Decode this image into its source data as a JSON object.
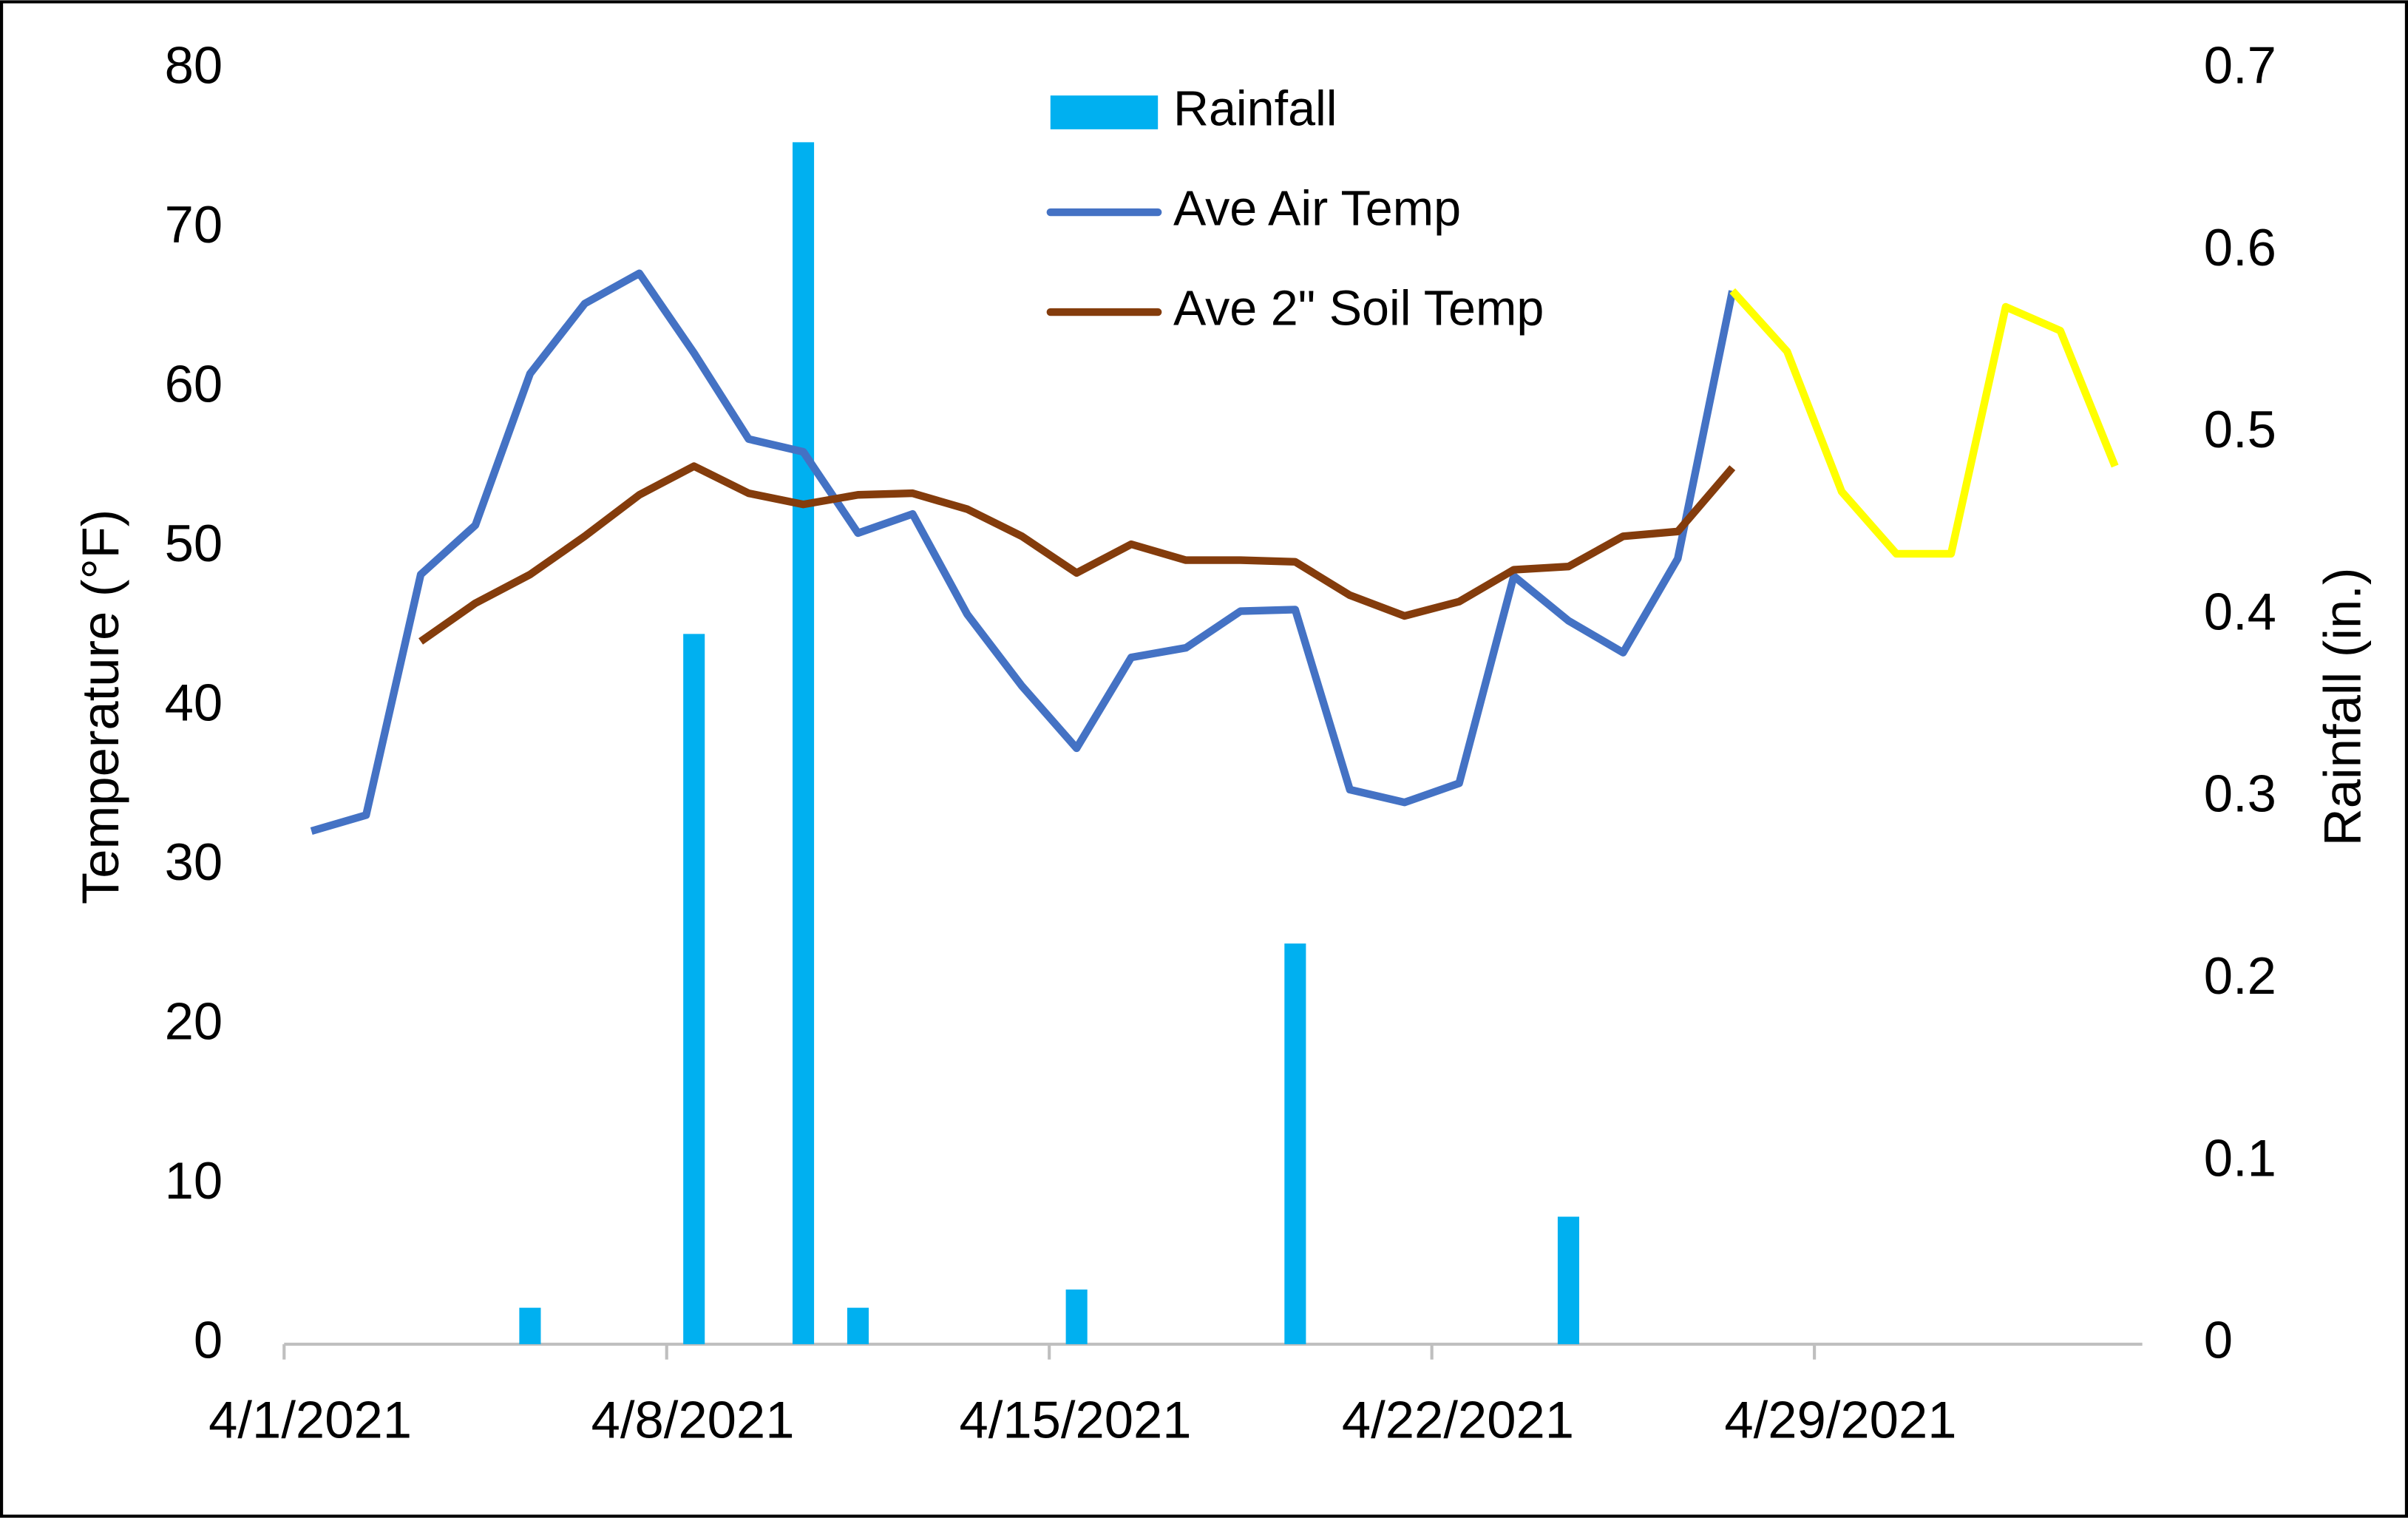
{
  "chart_data": {
    "type": "combo",
    "x": [
      "4/1/2021",
      "4/2/2021",
      "4/3/2021",
      "4/4/2021",
      "4/5/2021",
      "4/6/2021",
      "4/7/2021",
      "4/8/2021",
      "4/9/2021",
      "4/10/2021",
      "4/11/2021",
      "4/12/2021",
      "4/13/2021",
      "4/14/2021",
      "4/15/2021",
      "4/16/2021",
      "4/17/2021",
      "4/18/2021",
      "4/19/2021",
      "4/20/2021",
      "4/21/2021",
      "4/22/2021",
      "4/23/2021",
      "4/24/2021",
      "4/25/2021",
      "4/26/2021",
      "4/27/2021",
      "4/28/2021",
      "4/29/2021",
      "4/30/2021",
      "5/1/2021",
      "5/2/2021",
      "5/3/2021",
      "5/4/2021"
    ],
    "xlim": [
      "4/1/2021",
      "5/5/2021"
    ],
    "xticks": [
      "4/1/2021",
      "4/8/2021",
      "4/15/2021",
      "4/22/2021",
      "4/29/2021"
    ],
    "ylabel": "Temperature (°F)",
    "ylim": [
      0,
      80
    ],
    "yticks": [
      0,
      10,
      20,
      30,
      40,
      50,
      60,
      70,
      80
    ],
    "y2label": "Rainfall (in.)",
    "y2lim": [
      0,
      0.7
    ],
    "y2ticks": [
      0,
      0.1,
      0.2,
      0.3,
      0.4,
      0.5,
      0.6,
      0.7
    ],
    "grid": false,
    "legend": "top",
    "series": [
      {
        "name": "Rainfall",
        "type": "bar",
        "axis": "y2",
        "color": "#00B0F0",
        "values": [
          0,
          0,
          0,
          0,
          0.02,
          0,
          0,
          0.39,
          0,
          0.66,
          0.02,
          0,
          0,
          0,
          0.03,
          0,
          0,
          0,
          0.22,
          0,
          0,
          0,
          0,
          0.07,
          0,
          0,
          0,
          null,
          null,
          null,
          null,
          null,
          null,
          null
        ]
      },
      {
        "name": "Ave Air Temp",
        "type": "line",
        "color": "#4472C4",
        "values": [
          32.2,
          33.2,
          48.3,
          51.4,
          60.9,
          65.3,
          67.2,
          62.2,
          56.8,
          56.0,
          50.9,
          52.1,
          45.8,
          41.3,
          37.4,
          43.1,
          43.7,
          46.0,
          46.1,
          34.8,
          34.0,
          35.2,
          48.2,
          45.4,
          43.4,
          49.3,
          66.1,
          null,
          null,
          null,
          null,
          null,
          null,
          null
        ]
      },
      {
        "name": "Ave 2\" Soil Temp",
        "type": "line",
        "color": "#843C0C",
        "values": [
          null,
          null,
          44.1,
          46.5,
          48.3,
          50.7,
          53.3,
          55.1,
          53.4,
          52.7,
          53.3,
          53.4,
          52.4,
          50.7,
          48.4,
          50.2,
          49.2,
          49.2,
          49.1,
          47.0,
          45.7,
          46.6,
          48.6,
          48.8,
          50.7,
          51.0,
          55.0,
          null,
          null,
          null,
          null,
          null,
          null,
          null
        ]
      },
      {
        "type": "line",
        "color": "#FFFF00",
        "values": [
          null,
          null,
          null,
          null,
          null,
          null,
          null,
          null,
          null,
          null,
          null,
          null,
          null,
          null,
          null,
          null,
          null,
          null,
          null,
          null,
          null,
          null,
          null,
          null,
          null,
          null,
          66.1,
          62.3,
          53.5,
          49.6,
          49.6,
          65.1,
          63.6,
          55.1
        ]
      }
    ]
  }
}
